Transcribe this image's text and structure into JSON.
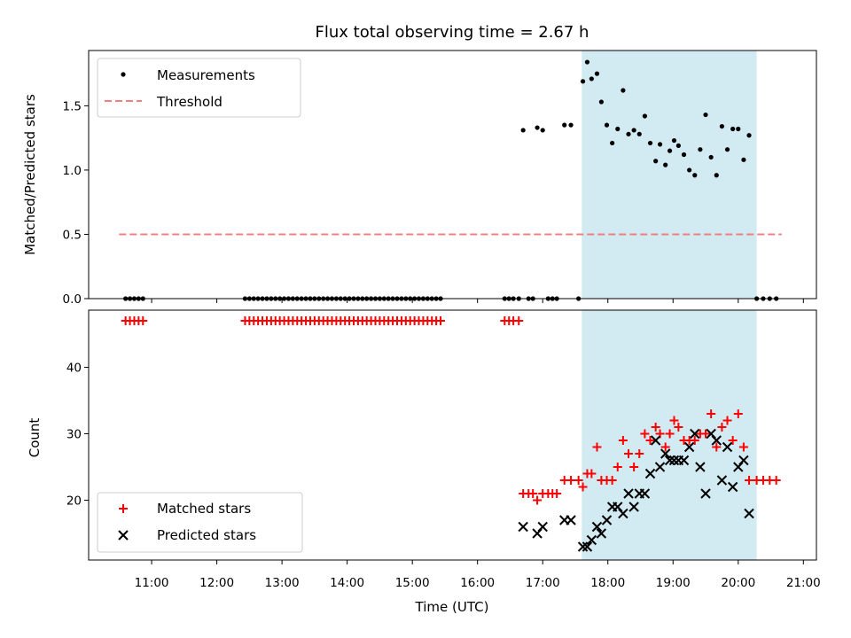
{
  "chart_data": [
    {
      "type": "scatter",
      "title": "Flux total observing time = 2.67 h",
      "ylabel": "Matched/Predicted stars",
      "xlabel": "",
      "ylim": [
        0,
        1.93
      ],
      "yticks": [
        0.0,
        0.5,
        1.0,
        1.5
      ],
      "ytick_labels": [
        "0.0",
        "0.5",
        "1.0",
        "1.5"
      ],
      "xlim": [
        "10:02",
        "21:12"
      ],
      "highlight_span": [
        "17:36",
        "20:17"
      ],
      "highlight_color": "#add8e6",
      "legend_position": "upper left",
      "series": [
        {
          "name": "Measurements",
          "color": "#000000",
          "marker": "dot",
          "points": [
            [
              "10:36",
              0
            ],
            [
              "10:40",
              0
            ],
            [
              "10:44",
              0
            ],
            [
              "10:48",
              0
            ],
            [
              "10:52",
              0
            ],
            [
              "12:26",
              0
            ],
            [
              "12:30",
              0
            ],
            [
              "12:34",
              0
            ],
            [
              "12:38",
              0
            ],
            [
              "12:42",
              0
            ],
            [
              "12:46",
              0
            ],
            [
              "12:50",
              0
            ],
            [
              "12:54",
              0
            ],
            [
              "12:58",
              0
            ],
            [
              "13:02",
              0
            ],
            [
              "13:06",
              0
            ],
            [
              "13:10",
              0
            ],
            [
              "13:14",
              0
            ],
            [
              "13:18",
              0
            ],
            [
              "13:22",
              0
            ],
            [
              "13:26",
              0
            ],
            [
              "13:30",
              0
            ],
            [
              "13:34",
              0
            ],
            [
              "13:38",
              0
            ],
            [
              "13:42",
              0
            ],
            [
              "13:46",
              0
            ],
            [
              "13:50",
              0
            ],
            [
              "13:54",
              0
            ],
            [
              "13:58",
              0
            ],
            [
              "14:02",
              0
            ],
            [
              "14:06",
              0
            ],
            [
              "14:10",
              0
            ],
            [
              "14:14",
              0
            ],
            [
              "14:18",
              0
            ],
            [
              "14:22",
              0
            ],
            [
              "14:26",
              0
            ],
            [
              "14:30",
              0
            ],
            [
              "14:34",
              0
            ],
            [
              "14:38",
              0
            ],
            [
              "14:42",
              0
            ],
            [
              "14:46",
              0
            ],
            [
              "14:50",
              0
            ],
            [
              "14:54",
              0
            ],
            [
              "14:58",
              0
            ],
            [
              "15:02",
              0
            ],
            [
              "15:06",
              0
            ],
            [
              "15:10",
              0
            ],
            [
              "15:14",
              0
            ],
            [
              "15:18",
              0
            ],
            [
              "15:22",
              0
            ],
            [
              "15:26",
              0
            ],
            [
              "16:25",
              0
            ],
            [
              "16:29",
              0
            ],
            [
              "16:33",
              0
            ],
            [
              "16:38",
              0
            ],
            [
              "16:42",
              1.31
            ],
            [
              "16:47",
              0
            ],
            [
              "16:51",
              0
            ],
            [
              "16:55",
              1.33
            ],
            [
              "17:00",
              1.31
            ],
            [
              "17:05",
              0
            ],
            [
              "17:09",
              0
            ],
            [
              "17:13",
              0
            ],
            [
              "17:20",
              1.35
            ],
            [
              "17:26",
              1.35
            ],
            [
              "17:33",
              0
            ],
            [
              "17:37",
              1.69
            ],
            [
              "17:41",
              1.84
            ],
            [
              "17:45",
              1.71
            ],
            [
              "17:50",
              1.75
            ],
            [
              "17:54",
              1.53
            ],
            [
              "17:59",
              1.35
            ],
            [
              "18:04",
              1.21
            ],
            [
              "18:09",
              1.32
            ],
            [
              "18:14",
              1.62
            ],
            [
              "18:19",
              1.28
            ],
            [
              "18:24",
              1.31
            ],
            [
              "18:29",
              1.28
            ],
            [
              "18:34",
              1.42
            ],
            [
              "18:39",
              1.21
            ],
            [
              "18:44",
              1.07
            ],
            [
              "18:48",
              1.2
            ],
            [
              "18:53",
              1.04
            ],
            [
              "18:57",
              1.15
            ],
            [
              "19:01",
              1.23
            ],
            [
              "19:05",
              1.19
            ],
            [
              "19:10",
              1.12
            ],
            [
              "19:15",
              1.0
            ],
            [
              "19:20",
              0.96
            ],
            [
              "19:25",
              1.16
            ],
            [
              "19:30",
              1.43
            ],
            [
              "19:35",
              1.1
            ],
            [
              "19:40",
              0.96
            ],
            [
              "19:45",
              1.34
            ],
            [
              "19:50",
              1.16
            ],
            [
              "19:55",
              1.32
            ],
            [
              "20:00",
              1.32
            ],
            [
              "20:05",
              1.08
            ],
            [
              "20:10",
              1.27
            ],
            [
              "20:17",
              0
            ],
            [
              "20:23",
              0
            ],
            [
              "20:29",
              0
            ],
            [
              "20:35",
              0
            ]
          ]
        },
        {
          "name": "Threshold",
          "color": "#f08080",
          "style": "dashed",
          "points": [
            [
              "10:30",
              0.5
            ],
            [
              "20:40",
              0.5
            ]
          ]
        }
      ]
    },
    {
      "type": "scatter",
      "title": "",
      "ylabel": "Count",
      "xlabel": "Time (UTC)",
      "ylim": [
        11,
        48.6
      ],
      "yticks": [
        20,
        30,
        40
      ],
      "ytick_labels": [
        "20",
        "30",
        "40"
      ],
      "xlim": [
        "10:02",
        "21:12"
      ],
      "xticks": [
        "11:00",
        "12:00",
        "13:00",
        "14:00",
        "15:00",
        "16:00",
        "17:00",
        "18:00",
        "19:00",
        "20:00",
        "21:00"
      ],
      "xtick_labels": [
        "11:00",
        "12:00",
        "13:00",
        "14:00",
        "15:00",
        "16:00",
        "17:00",
        "18:00",
        "19:00",
        "20:00",
        "21:00"
      ],
      "highlight_span": [
        "17:36",
        "20:17"
      ],
      "highlight_color": "#add8e6",
      "legend_position": "lower left",
      "series": [
        {
          "name": "Matched stars",
          "color": "#ff0000",
          "marker": "plus",
          "points": [
            [
              "10:36",
              47
            ],
            [
              "10:40",
              47
            ],
            [
              "10:44",
              47
            ],
            [
              "10:48",
              47
            ],
            [
              "10:52",
              47
            ],
            [
              "12:26",
              47
            ],
            [
              "12:30",
              47
            ],
            [
              "12:34",
              47
            ],
            [
              "12:38",
              47
            ],
            [
              "12:42",
              47
            ],
            [
              "12:46",
              47
            ],
            [
              "12:50",
              47
            ],
            [
              "12:54",
              47
            ],
            [
              "12:58",
              47
            ],
            [
              "13:02",
              47
            ],
            [
              "13:06",
              47
            ],
            [
              "13:10",
              47
            ],
            [
              "13:14",
              47
            ],
            [
              "13:18",
              47
            ],
            [
              "13:22",
              47
            ],
            [
              "13:26",
              47
            ],
            [
              "13:30",
              47
            ],
            [
              "13:34",
              47
            ],
            [
              "13:38",
              47
            ],
            [
              "13:42",
              47
            ],
            [
              "13:46",
              47
            ],
            [
              "13:50",
              47
            ],
            [
              "13:54",
              47
            ],
            [
              "13:58",
              47
            ],
            [
              "14:02",
              47
            ],
            [
              "14:06",
              47
            ],
            [
              "14:10",
              47
            ],
            [
              "14:14",
              47
            ],
            [
              "14:18",
              47
            ],
            [
              "14:22",
              47
            ],
            [
              "14:26",
              47
            ],
            [
              "14:30",
              47
            ],
            [
              "14:34",
              47
            ],
            [
              "14:38",
              47
            ],
            [
              "14:42",
              47
            ],
            [
              "14:46",
              47
            ],
            [
              "14:50",
              47
            ],
            [
              "14:54",
              47
            ],
            [
              "14:58",
              47
            ],
            [
              "15:02",
              47
            ],
            [
              "15:06",
              47
            ],
            [
              "15:10",
              47
            ],
            [
              "15:14",
              47
            ],
            [
              "15:18",
              47
            ],
            [
              "15:22",
              47
            ],
            [
              "15:26",
              47
            ],
            [
              "16:25",
              47
            ],
            [
              "16:29",
              47
            ],
            [
              "16:33",
              47
            ],
            [
              "16:38",
              47
            ],
            [
              "16:42",
              21
            ],
            [
              "16:47",
              21
            ],
            [
              "16:51",
              21
            ],
            [
              "16:55",
              20
            ],
            [
              "17:00",
              21
            ],
            [
              "17:05",
              21
            ],
            [
              "17:09",
              21
            ],
            [
              "17:13",
              21
            ],
            [
              "17:20",
              23
            ],
            [
              "17:26",
              23
            ],
            [
              "17:33",
              23
            ],
            [
              "17:37",
              22
            ],
            [
              "17:41",
              24
            ],
            [
              "17:45",
              24
            ],
            [
              "17:50",
              28
            ],
            [
              "17:54",
              23
            ],
            [
              "17:59",
              23
            ],
            [
              "18:04",
              23
            ],
            [
              "18:09",
              25
            ],
            [
              "18:14",
              29
            ],
            [
              "18:19",
              27
            ],
            [
              "18:24",
              25
            ],
            [
              "18:29",
              27
            ],
            [
              "18:34",
              30
            ],
            [
              "18:39",
              29
            ],
            [
              "18:44",
              31
            ],
            [
              "18:48",
              30
            ],
            [
              "18:53",
              28
            ],
            [
              "18:57",
              30
            ],
            [
              "19:01",
              32
            ],
            [
              "19:05",
              31
            ],
            [
              "19:10",
              29
            ],
            [
              "19:15",
              29
            ],
            [
              "19:20",
              29
            ],
            [
              "19:25",
              30
            ],
            [
              "19:30",
              30
            ],
            [
              "19:35",
              33
            ],
            [
              "19:40",
              28
            ],
            [
              "19:45",
              31
            ],
            [
              "19:50",
              32
            ],
            [
              "19:55",
              29
            ],
            [
              "20:00",
              33
            ],
            [
              "20:05",
              28
            ],
            [
              "20:10",
              23
            ],
            [
              "20:17",
              23
            ],
            [
              "20:23",
              23
            ],
            [
              "20:29",
              23
            ],
            [
              "20:35",
              23
            ]
          ]
        },
        {
          "name": "Predicted stars",
          "color": "#000000",
          "marker": "x",
          "points": [
            [
              "16:42",
              16
            ],
            [
              "16:55",
              15
            ],
            [
              "17:00",
              16
            ],
            [
              "17:20",
              17
            ],
            [
              "17:26",
              17
            ],
            [
              "17:37",
              13
            ],
            [
              "17:41",
              13
            ],
            [
              "17:45",
              14
            ],
            [
              "17:50",
              16
            ],
            [
              "17:54",
              15
            ],
            [
              "17:59",
              17
            ],
            [
              "18:04",
              19
            ],
            [
              "18:09",
              19
            ],
            [
              "18:14",
              18
            ],
            [
              "18:19",
              21
            ],
            [
              "18:24",
              19
            ],
            [
              "18:29",
              21
            ],
            [
              "18:34",
              21
            ],
            [
              "18:39",
              24
            ],
            [
              "18:44",
              29
            ],
            [
              "18:48",
              25
            ],
            [
              "18:53",
              27
            ],
            [
              "18:57",
              26
            ],
            [
              "19:01",
              26
            ],
            [
              "19:05",
              26
            ],
            [
              "19:10",
              26
            ],
            [
              "19:15",
              28
            ],
            [
              "19:20",
              30
            ],
            [
              "19:25",
              25
            ],
            [
              "19:30",
              21
            ],
            [
              "19:35",
              30
            ],
            [
              "19:40",
              29
            ],
            [
              "19:45",
              23
            ],
            [
              "19:50",
              28
            ],
            [
              "19:55",
              22
            ],
            [
              "20:00",
              25
            ],
            [
              "20:05",
              26
            ],
            [
              "20:10",
              18
            ]
          ]
        }
      ]
    }
  ]
}
